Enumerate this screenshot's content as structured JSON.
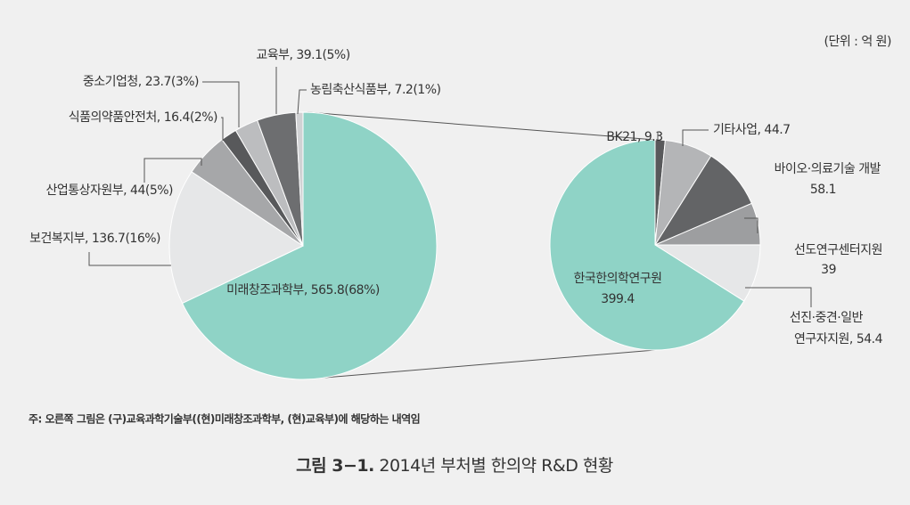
{
  "unit": "(단위 : 억 원)",
  "note": "주: 오른쪽 그림은 (구)교육과학기술부((현)미래창조과학부, (현)교육부)에 해당하는 내역임",
  "caption": {
    "label": "그림 3−1.",
    "text": "2014년 부처별 한의약 R&D 현황"
  },
  "chart_data": [
    {
      "type": "pie",
      "labels": [
        [
          "미래창조과학부, 565.8(68%)"
        ],
        [
          "보건복지부, 136.7(16%)"
        ],
        [
          "산업통상자원부, 44(5%)"
        ],
        [
          "식품의약품안전처, 16.4(2%)"
        ],
        [
          "중소기업청, 23.7(3%)"
        ],
        [
          "교육부, 39.1(5%)"
        ],
        [
          "농림축산식품부, 7.2(1%)"
        ]
      ],
      "values": [
        565.8,
        136.7,
        44,
        16.4,
        23.7,
        39.1,
        7.2
      ],
      "colors": [
        "#8fd3c6",
        "#e6e7e8",
        "#a6a7a9",
        "#58595b",
        "#bcbdbf",
        "#6d6e70",
        "#d1d2d4"
      ]
    },
    {
      "type": "pie",
      "labels": [
        [
          "BK21, 9.3"
        ],
        [
          "기타사업, 44.7"
        ],
        [
          "바이오·의료기술 개발",
          "58.1"
        ],
        [
          "선도연구센터지원",
          "39"
        ],
        [
          "선진·중견·일반",
          "연구자지원, 54.4"
        ],
        [
          "한국한의학연구원",
          "399.4"
        ]
      ],
      "values": [
        9.3,
        44.7,
        58.1,
        39,
        54.4,
        399.4
      ],
      "colors": [
        "#58595b",
        "#b4b5b7",
        "#636466",
        "#9d9ea0",
        "#e6e7e8",
        "#8fd3c6"
      ]
    }
  ]
}
